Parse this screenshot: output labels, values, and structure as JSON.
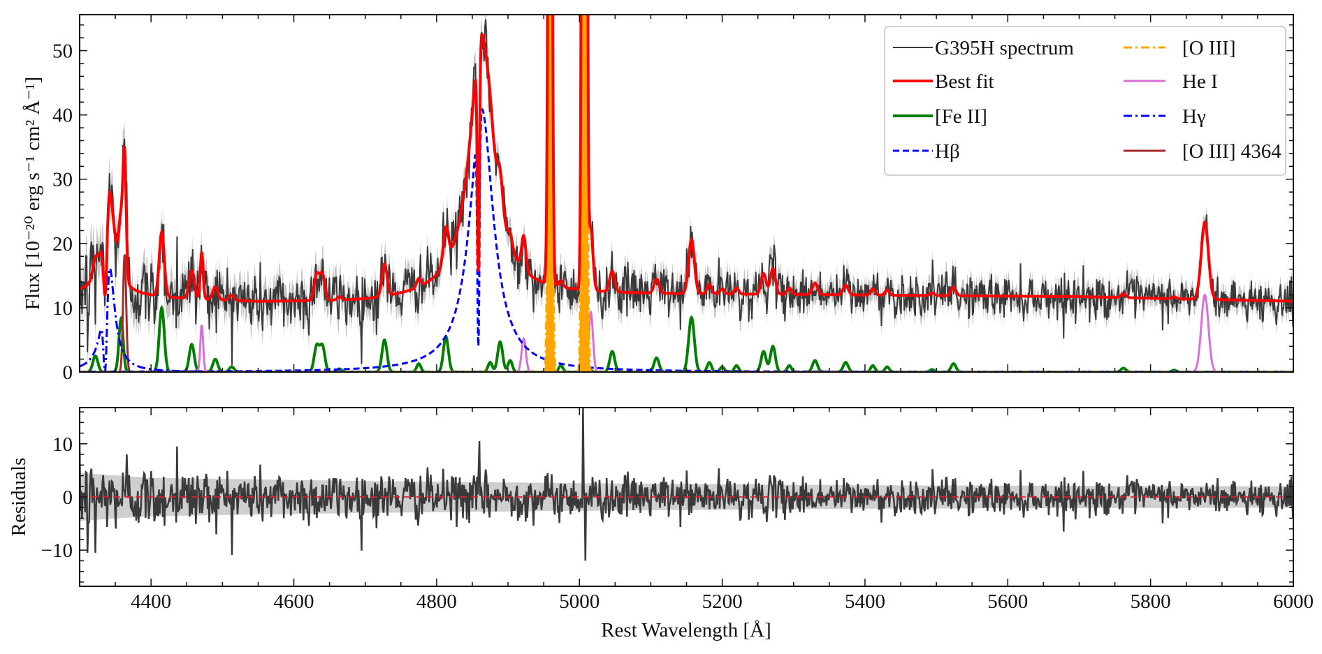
{
  "chart_data": [
    {
      "panel": "spectrum",
      "type": "line",
      "xlabel": "",
      "ylabel": "Flux [10⁻²⁰ erg s⁻¹ cm² Å⁻¹]",
      "xlim": [
        4300,
        6000
      ],
      "ylim": [
        0,
        55.6
      ],
      "xticks_major": [
        4400,
        4600,
        4800,
        5000,
        5200,
        5400,
        5600,
        5800,
        6000
      ],
      "yticks_major": [
        0,
        10,
        20,
        30,
        40,
        50
      ],
      "yticklabels": [
        "0",
        "10",
        "20",
        "30",
        "40",
        "50"
      ],
      "grid": false,
      "legend_position": "top-right",
      "continuum": [
        [
          4300,
          12
        ],
        [
          4400,
          11.5
        ],
        [
          4550,
          10.8
        ],
        [
          4700,
          10.8
        ],
        [
          4800,
          11.4
        ],
        [
          5000,
          12
        ],
        [
          5300,
          12
        ],
        [
          5700,
          11.7
        ],
        [
          6000,
          11
        ]
      ],
      "uncertainty": [
        [
          4300,
          4.5
        ],
        [
          4400,
          3.6
        ],
        [
          4700,
          3.0
        ],
        [
          5000,
          2.6
        ],
        [
          5400,
          2.2
        ],
        [
          6000,
          2.0
        ]
      ],
      "series": [
        {
          "name": "G395H spectrum",
          "color": "#3a3a3a",
          "style": "solid"
        },
        {
          "name": "Best fit",
          "color": "#ff0000",
          "style": "solid"
        },
        {
          "name": "[Fe II]",
          "color": "#008000",
          "style": "solid",
          "lines": [
            [
              4322,
              2.5,
              3.5
            ],
            [
              4358,
              8.3,
              3
            ],
            [
              4415,
              10,
              3.5
            ],
            [
              4457,
              4.3,
              3.5
            ],
            [
              4490,
              2,
              3.5
            ],
            [
              4513,
              0.8,
              3.5
            ],
            [
              4632,
              4,
              3.5
            ],
            [
              4640,
              4,
              3.5
            ],
            [
              4664,
              0.5,
              3
            ],
            [
              4727,
              5,
              3.5
            ],
            [
              4775,
              1.3,
              3
            ],
            [
              4813,
              5.5,
              3.5
            ],
            [
              4875,
              1.5,
              3
            ],
            [
              4889,
              4.7,
              3.5
            ],
            [
              4903,
              1.8,
              3
            ],
            [
              4974,
              1,
              3
            ],
            [
              5013,
              0.5,
              3
            ],
            [
              5046,
              3.2,
              3.5
            ],
            [
              5108,
              2.2,
              3.5
            ],
            [
              5157,
              8.5,
              4
            ],
            [
              5182,
              1.5,
              3
            ],
            [
              5200,
              0.8,
              3
            ],
            [
              5220,
              1,
              3
            ],
            [
              5258,
              3.2,
              3.5
            ],
            [
              5271,
              4,
              3.5
            ],
            [
              5294,
              1,
              3
            ],
            [
              5330,
              1.8,
              3.5
            ],
            [
              5373,
              1.5,
              3.5
            ],
            [
              5411,
              1,
              3
            ],
            [
              5431,
              0.8,
              3
            ],
            [
              5494,
              0.4,
              3
            ],
            [
              5524,
              1.3,
              3.5
            ],
            [
              5762,
              0.6,
              3.5
            ],
            [
              5833,
              0.3,
              3
            ]
          ]
        },
        {
          "name": "Hβ",
          "color": "#0000ff",
          "style": "dashed",
          "broad": {
            "center": 4863,
            "amp": 41,
            "hwhm": 20
          },
          "absorption": {
            "center": 4858.5,
            "amp": -35,
            "sigma": 1.5
          }
        },
        {
          "name": "[O III]",
          "color": "#ffa500",
          "style": "dashdot",
          "lines": [
            [
              4959,
              170,
              2.2
            ],
            [
              5007,
              500,
              2.2
            ]
          ]
        },
        {
          "name": "He I",
          "color": "#da70d6",
          "style": "solid",
          "lines": [
            [
              4471,
              7.3,
              2
            ],
            [
              4922,
              5.2,
              3
            ],
            [
              5016,
              9.3,
              3
            ],
            [
              5876,
              12,
              5
            ]
          ]
        },
        {
          "name": "Hγ",
          "color": "#0000ff",
          "style": "dashdot",
          "broad": {
            "center": 4341,
            "amp": 17,
            "hwhm": 9.6
          },
          "absorption": {
            "center": 4336,
            "amp": -13,
            "sigma": 2.5
          }
        },
        {
          "name": "[O III] 4364",
          "color": "#a52a2a",
          "style": "solid",
          "lines": [
            [
              4363,
              18.3,
              2.2
            ]
          ]
        }
      ]
    },
    {
      "panel": "residuals",
      "type": "line",
      "xlabel": "Rest Wavelength [Å]",
      "ylabel": "Residuals",
      "xlim": [
        4300,
        6000
      ],
      "ylim": [
        -16.8,
        16.8
      ],
      "xticks_major": [
        4400,
        4600,
        4800,
        5000,
        5200,
        5400,
        5600,
        5800,
        6000
      ],
      "xticklabels": [
        "4400",
        "4600",
        "4800",
        "5000",
        "5200",
        "5400",
        "5600",
        "5800",
        "6000"
      ],
      "yticks_major": [
        -10,
        0,
        10
      ],
      "yticklabels": [
        "−10",
        "0",
        "10"
      ],
      "zero_line_color": "#d62728",
      "notable_residuals": [
        [
          4311,
          -10.5
        ],
        [
          4322,
          -10.5
        ],
        [
          4366,
          8
        ],
        [
          4436,
          9.5
        ],
        [
          4860,
          10.5
        ],
        [
          5005,
          17
        ],
        [
          5008,
          -12
        ]
      ]
    }
  ]
}
